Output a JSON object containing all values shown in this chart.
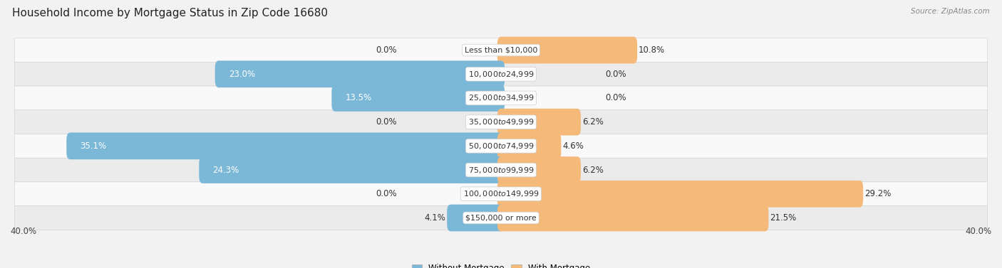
{
  "title": "Household Income by Mortgage Status in Zip Code 16680",
  "source": "Source: ZipAtlas.com",
  "categories": [
    "Less than $10,000",
    "$10,000 to $24,999",
    "$25,000 to $34,999",
    "$35,000 to $49,999",
    "$50,000 to $74,999",
    "$75,000 to $99,999",
    "$100,000 to $149,999",
    "$150,000 or more"
  ],
  "without_mortgage": [
    0.0,
    23.0,
    13.5,
    0.0,
    35.1,
    24.3,
    0.0,
    4.1
  ],
  "with_mortgage": [
    10.8,
    0.0,
    0.0,
    6.2,
    4.6,
    6.2,
    29.2,
    21.5
  ],
  "x_max": 40.0,
  "color_without": "#7bb8d8",
  "color_with": "#f5b97a",
  "bg_color": "#f2f2f2",
  "row_bg_light": "#ebebeb",
  "row_bg_white": "#f9f9f9",
  "title_fontsize": 11,
  "label_fontsize": 8.5,
  "cat_fontsize": 8.0,
  "axis_label_fontsize": 8.5,
  "legend_fontsize": 8.5
}
